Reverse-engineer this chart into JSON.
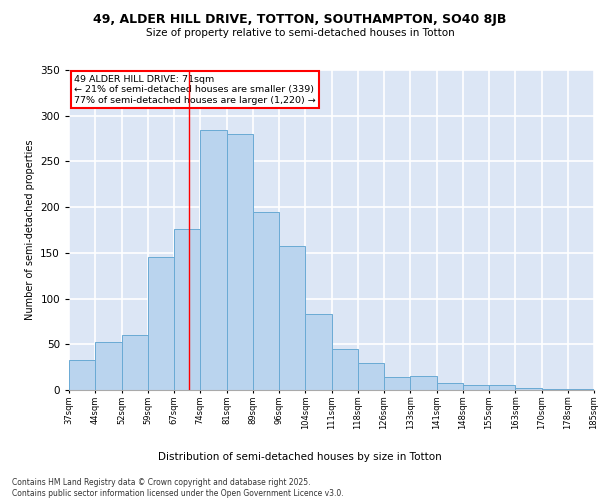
{
  "title1": "49, ALDER HILL DRIVE, TOTTON, SOUTHAMPTON, SO40 8JB",
  "title2": "Size of property relative to semi-detached houses in Totton",
  "xlabel": "Distribution of semi-detached houses by size in Totton",
  "ylabel": "Number of semi-detached properties",
  "categories": [
    "37sqm",
    "44sqm",
    "52sqm",
    "59sqm",
    "67sqm",
    "74sqm",
    "81sqm",
    "89sqm",
    "96sqm",
    "104sqm",
    "111sqm",
    "118sqm",
    "126sqm",
    "133sqm",
    "141sqm",
    "148sqm",
    "155sqm",
    "163sqm",
    "170sqm",
    "178sqm",
    "185sqm"
  ],
  "values": [
    33,
    52,
    60,
    145,
    176,
    284,
    280,
    195,
    157,
    83,
    45,
    30,
    14,
    15,
    8,
    5,
    5,
    2,
    1,
    1
  ],
  "bar_color": "#bad4ee",
  "bar_edge_color": "#6aaad4",
  "background_color": "#dce6f5",
  "pct_smaller": 21,
  "pct_larger": 77,
  "count_smaller": 339,
  "count_larger": "1,220",
  "footer": "Contains HM Land Registry data © Crown copyright and database right 2025.\nContains public sector information licensed under the Open Government Licence v3.0.",
  "ylim": [
    0,
    350
  ],
  "yticks": [
    0,
    50,
    100,
    150,
    200,
    250,
    300,
    350
  ]
}
